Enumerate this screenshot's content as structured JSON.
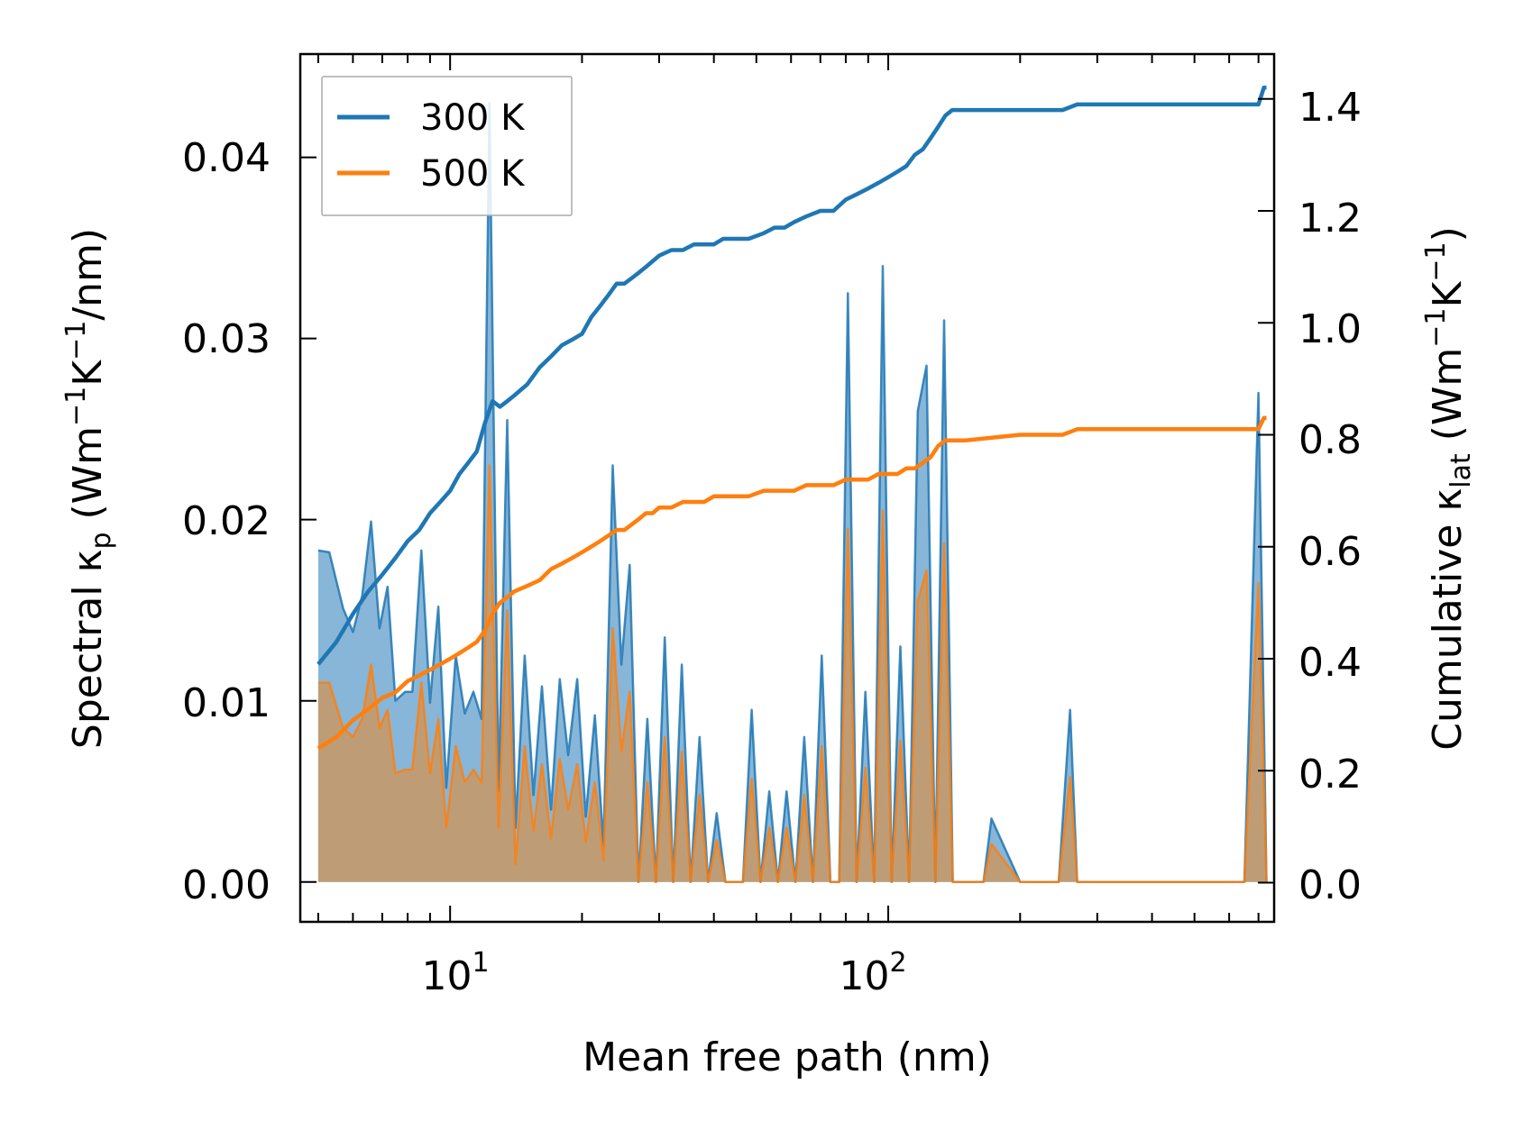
{
  "chart_data": {
    "type": "line",
    "xscale": "log",
    "xlabel": "Mean free path (nm)",
    "ylabel": {
      "pre": "Spectral κ",
      "sub": "p",
      "mid": " (Wm",
      "sup1": "−1",
      "k": "K",
      "sup2": "−1",
      "post": "/nm)"
    },
    "y2label": {
      "pre": "Cumulative κ",
      "sub": "lat",
      "mid": " (Wm",
      "sup1": "−1",
      "k": "K",
      "sup2": "−1",
      "post": ")"
    },
    "xlim": [
      4.55,
      760
    ],
    "ylim": [
      -0.0022,
      0.0457
    ],
    "y2lim": [
      -0.07,
      1.48
    ],
    "x_ticks": [
      {
        "base": "10",
        "exp": "1"
      },
      {
        "base": "10",
        "exp": "2"
      }
    ],
    "y_tick_labels": [
      "0.00",
      "0.01",
      "0.02",
      "0.03",
      "0.04"
    ],
    "y2_tick_labels": [
      "0.0",
      "0.2",
      "0.4",
      "0.6",
      "0.8",
      "1.0",
      "1.2",
      "1.4"
    ],
    "colors": {
      "s300": "#1f77b4",
      "s500": "#ff7f0e",
      "fill300": "#7aaed4",
      "fill500": "#c49a6c"
    },
    "legend": {
      "position": "upper-left",
      "entries": [
        "300 K",
        "500 K"
      ]
    },
    "series": [
      {
        "name": "300 K",
        "role": "spectral",
        "x": [
          5.0,
          5.3,
          5.7,
          6.0,
          6.3,
          6.6,
          6.9,
          7.2,
          7.5,
          7.9,
          8.2,
          8.6,
          9.0,
          9.4,
          9.8,
          10.3,
          10.8,
          11.3,
          11.8,
          12.3,
          12.9,
          13.5,
          14.1,
          14.8,
          15.5,
          16.2,
          17.0,
          17.8,
          18.6,
          19.5,
          20.4,
          21.4,
          22.4,
          23.5,
          24.6,
          25.7,
          26.9,
          28.2,
          29.5,
          30.9,
          32.3,
          33.8,
          35.4,
          37.1,
          38.8,
          40.6,
          42.5,
          44.5,
          46.6,
          48.8,
          51.1,
          53.5,
          56.0,
          58.6,
          61.4,
          64.3,
          67.3,
          70.5,
          73.8,
          77.3,
          80.9,
          84.7,
          88.7,
          92.9,
          97.2,
          101.8,
          106.6,
          111.6,
          116.8,
          122.3,
          128.1,
          134.1,
          140.4,
          147.0,
          165.0,
          172.0,
          200.0,
          245.0,
          260.0,
          270.0,
          300.0,
          400.0,
          500.0,
          650.0,
          700.0,
          730.0
        ],
        "y": [
          0.0183,
          0.0182,
          0.0151,
          0.0138,
          0.0158,
          0.0199,
          0.014,
          0.0163,
          0.01,
          0.0105,
          0.0105,
          0.0183,
          0.0099,
          0.0152,
          0.0052,
          0.0125,
          0.0093,
          0.0105,
          0.009,
          0.043,
          0.005,
          0.0255,
          0.003,
          0.0125,
          0.0048,
          0.0108,
          0.004,
          0.0112,
          0.007,
          0.0112,
          0.0036,
          0.0092,
          0.002,
          0.023,
          0.012,
          0.0175,
          0.0,
          0.009,
          0.0,
          0.0135,
          0.0,
          0.012,
          0.0,
          0.008,
          0.0,
          0.0038,
          0.0,
          0.0,
          0.0,
          0.0095,
          0.0,
          0.005,
          0.0,
          0.005,
          0.0,
          0.008,
          0.0,
          0.0125,
          0.0,
          0.0,
          0.0325,
          0.0,
          0.0105,
          0.0,
          0.034,
          0.0,
          0.013,
          0.0,
          0.026,
          0.0285,
          0.0,
          0.031,
          0.0,
          0.0,
          0.0,
          0.0035,
          0.0,
          0.0,
          0.0095,
          0.0,
          0.0,
          0.0,
          0.0,
          0.0,
          0.027,
          0.0
        ]
      },
      {
        "name": "500 K",
        "role": "spectral",
        "x": [
          5.0,
          5.3,
          5.7,
          6.0,
          6.3,
          6.6,
          6.9,
          7.2,
          7.5,
          7.9,
          8.2,
          8.6,
          9.0,
          9.4,
          9.8,
          10.3,
          10.8,
          11.3,
          11.8,
          12.3,
          12.9,
          13.5,
          14.1,
          14.8,
          15.5,
          16.2,
          17.0,
          17.8,
          18.6,
          19.5,
          20.4,
          21.4,
          22.4,
          23.5,
          24.6,
          25.7,
          26.9,
          28.2,
          29.5,
          30.9,
          32.3,
          33.8,
          35.4,
          37.1,
          38.8,
          40.6,
          42.5,
          44.5,
          46.6,
          48.8,
          51.1,
          53.5,
          56.0,
          58.6,
          61.4,
          64.3,
          67.3,
          70.5,
          73.8,
          77.3,
          80.9,
          84.7,
          88.7,
          92.9,
          97.2,
          101.8,
          106.6,
          111.6,
          116.8,
          122.3,
          128.1,
          134.1,
          140.4,
          147.0,
          165.0,
          172.0,
          200.0,
          245.0,
          260.0,
          270.0,
          300.0,
          400.0,
          500.0,
          650.0,
          700.0,
          730.0
        ],
        "y": [
          0.011,
          0.011,
          0.0085,
          0.008,
          0.009,
          0.012,
          0.0085,
          0.0095,
          0.006,
          0.0062,
          0.0062,
          0.011,
          0.006,
          0.009,
          0.003,
          0.0075,
          0.0055,
          0.0062,
          0.0055,
          0.023,
          0.003,
          0.015,
          0.001,
          0.0075,
          0.0028,
          0.0065,
          0.0024,
          0.0068,
          0.004,
          0.0065,
          0.0022,
          0.0055,
          0.0012,
          0.014,
          0.0072,
          0.0105,
          0.0,
          0.0055,
          0.0,
          0.008,
          0.0,
          0.0072,
          0.0,
          0.0048,
          0.0,
          0.0023,
          0.0,
          0.0,
          0.0,
          0.0057,
          0.0,
          0.003,
          0.0,
          0.003,
          0.0,
          0.0048,
          0.0,
          0.0075,
          0.0,
          0.0,
          0.0195,
          0.0,
          0.0063,
          0.0,
          0.0205,
          0.0,
          0.0078,
          0.0,
          0.0155,
          0.0172,
          0.0,
          0.0187,
          0.0,
          0.0,
          0.0,
          0.0021,
          0.0,
          0.0,
          0.0058,
          0.0,
          0.0,
          0.0,
          0.0,
          0.0,
          0.0165,
          0.0
        ]
      },
      {
        "name": "300 K",
        "role": "cumulative",
        "x": [
          5.0,
          5.5,
          6.0,
          6.5,
          7.0,
          7.5,
          8.0,
          8.5,
          9.0,
          9.5,
          10.0,
          10.5,
          11.0,
          11.5,
          12.0,
          12.5,
          13.0,
          13.5,
          14.0,
          15.0,
          16.0,
          17.0,
          18.0,
          19.0,
          20.0,
          21.0,
          22.0,
          23.0,
          24.0,
          25.0,
          26.0,
          27.0,
          28.0,
          29.0,
          30.0,
          32.0,
          34.0,
          36.0,
          38.0,
          40.0,
          42.0,
          45.0,
          48.0,
          52.0,
          55.0,
          58.0,
          61.0,
          65.0,
          70.0,
          75.0,
          80.0,
          85.0,
          90.0,
          95.0,
          100.0,
          105.0,
          110.0,
          115.0,
          120.0,
          125.0,
          130.0,
          135.0,
          140.0,
          150.0,
          200.0,
          250.0,
          270.0,
          300.0,
          400.0,
          500.0,
          600.0,
          700.0,
          720.0,
          730.0
        ],
        "y": [
          0.39,
          0.43,
          0.48,
          0.52,
          0.55,
          0.58,
          0.61,
          0.63,
          0.66,
          0.68,
          0.7,
          0.73,
          0.75,
          0.77,
          0.82,
          0.86,
          0.85,
          0.86,
          0.87,
          0.89,
          0.92,
          0.94,
          0.96,
          0.97,
          0.98,
          1.01,
          1.03,
          1.05,
          1.07,
          1.07,
          1.08,
          1.09,
          1.1,
          1.11,
          1.12,
          1.13,
          1.13,
          1.14,
          1.14,
          1.14,
          1.15,
          1.15,
          1.15,
          1.16,
          1.17,
          1.17,
          1.18,
          1.19,
          1.2,
          1.2,
          1.22,
          1.23,
          1.24,
          1.25,
          1.26,
          1.27,
          1.28,
          1.3,
          1.31,
          1.33,
          1.35,
          1.37,
          1.38,
          1.38,
          1.38,
          1.38,
          1.39,
          1.39,
          1.39,
          1.39,
          1.39,
          1.39,
          1.42,
          1.42
        ]
      },
      {
        "name": "500 K",
        "role": "cumulative",
        "x": [
          5.0,
          5.5,
          6.0,
          6.5,
          7.0,
          7.5,
          8.0,
          8.5,
          9.0,
          9.5,
          10.0,
          10.5,
          11.0,
          11.5,
          12.0,
          12.5,
          13.0,
          13.5,
          14.0,
          15.0,
          16.0,
          17.0,
          18.0,
          19.0,
          20.0,
          21.0,
          22.0,
          23.0,
          24.0,
          25.0,
          26.0,
          27.0,
          28.0,
          29.0,
          30.0,
          32.0,
          34.0,
          36.0,
          38.0,
          40.0,
          42.0,
          45.0,
          48.0,
          52.0,
          55.0,
          58.0,
          61.0,
          65.0,
          70.0,
          75.0,
          80.0,
          85.0,
          90.0,
          95.0,
          100.0,
          105.0,
          110.0,
          115.0,
          120.0,
          125.0,
          130.0,
          135.0,
          140.0,
          150.0,
          200.0,
          250.0,
          270.0,
          300.0,
          400.0,
          500.0,
          600.0,
          700.0,
          720.0,
          730.0
        ],
        "y": [
          0.24,
          0.26,
          0.29,
          0.31,
          0.33,
          0.34,
          0.36,
          0.37,
          0.38,
          0.39,
          0.4,
          0.41,
          0.42,
          0.43,
          0.45,
          0.48,
          0.5,
          0.51,
          0.52,
          0.53,
          0.54,
          0.56,
          0.57,
          0.58,
          0.59,
          0.6,
          0.61,
          0.62,
          0.63,
          0.63,
          0.64,
          0.65,
          0.66,
          0.66,
          0.67,
          0.67,
          0.68,
          0.68,
          0.68,
          0.69,
          0.69,
          0.69,
          0.69,
          0.7,
          0.7,
          0.7,
          0.7,
          0.71,
          0.71,
          0.71,
          0.72,
          0.72,
          0.72,
          0.73,
          0.73,
          0.73,
          0.74,
          0.74,
          0.75,
          0.76,
          0.78,
          0.79,
          0.79,
          0.79,
          0.8,
          0.8,
          0.81,
          0.81,
          0.81,
          0.81,
          0.81,
          0.81,
          0.83,
          0.83
        ]
      }
    ]
  }
}
